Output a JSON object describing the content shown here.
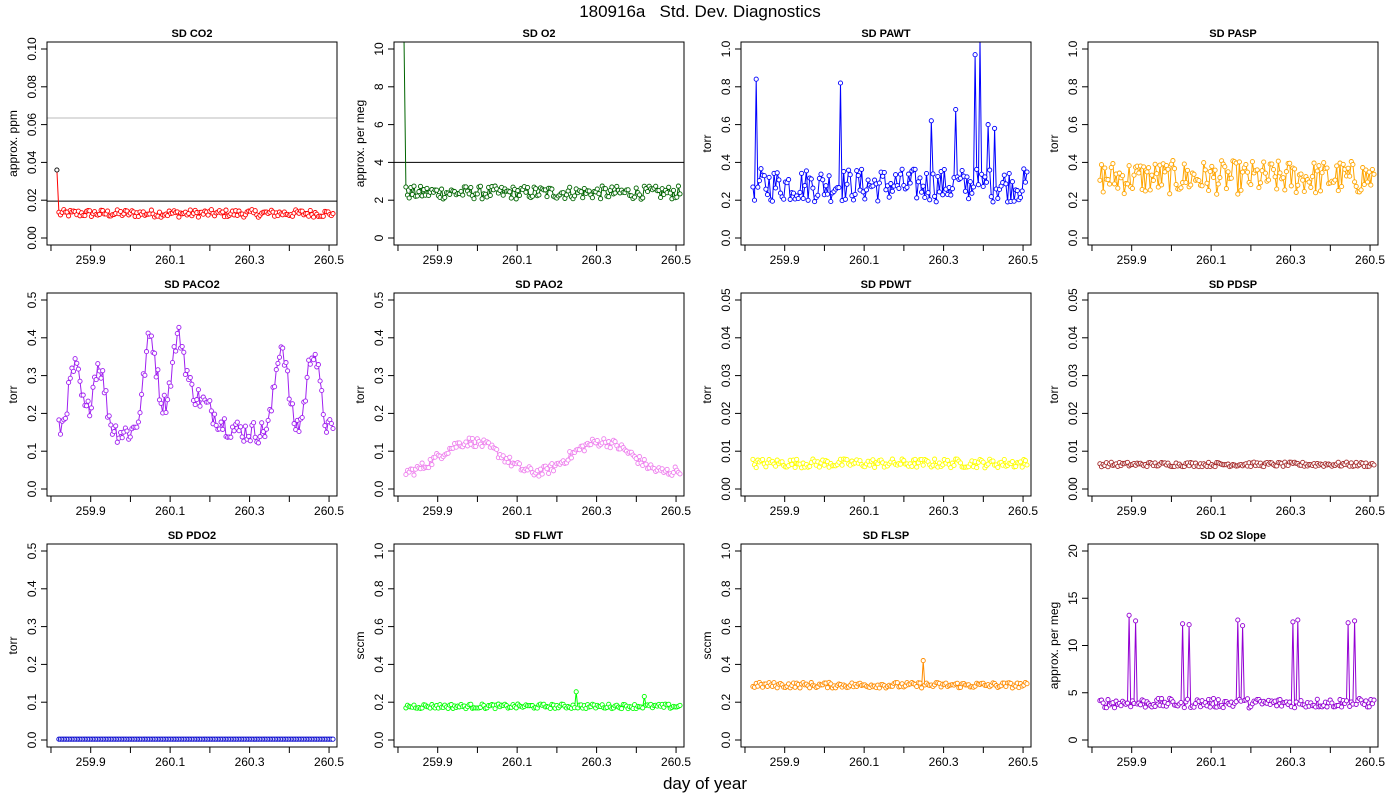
{
  "figure": {
    "title": "180916a   Std. Dev. Diagnostics",
    "xlabel": "day of year"
  },
  "chart_data": [
    {
      "type": "line",
      "title": "SD CO2",
      "ylabel": "approx. ppm",
      "ylim": [
        0,
        0.1
      ],
      "yticks": [
        "0.00",
        "0.02",
        "0.04",
        "0.06",
        "0.08",
        "0.10"
      ],
      "xticks": [
        "259.9",
        "260.1",
        "260.3",
        "260.5"
      ],
      "xlim": [
        259.79,
        260.52
      ],
      "color": "#ff0000",
      "base": 0.013,
      "amp": 0.002,
      "first": 0.036,
      "hlines": [
        {
          "y": 0.0195,
          "color": "#000000"
        },
        {
          "y": 0.0635,
          "color": "#bbbbbb"
        }
      ]
    },
    {
      "type": "line",
      "title": "SD O2",
      "ylabel": "approx. per meg",
      "ylim": [
        0,
        10
      ],
      "yticks": [
        "0",
        "2",
        "4",
        "6",
        "8",
        "10"
      ],
      "xticks": [
        "259.9",
        "260.1",
        "260.3",
        "260.5"
      ],
      "xlim": [
        259.79,
        260.52
      ],
      "color": "#006400",
      "base": 2.4,
      "amp": 0.35,
      "first": 11,
      "hlines": [
        {
          "y": 4,
          "color": "#000000"
        }
      ]
    },
    {
      "type": "line",
      "title": "SD PAWT",
      "ylabel": "torr",
      "ylim": [
        0,
        1
      ],
      "yticks": [
        "0.0",
        "0.2",
        "0.4",
        "0.6",
        "0.8",
        "1.0"
      ],
      "xticks": [
        "259.9",
        "260.1",
        "260.3",
        "260.5"
      ],
      "xlim": [
        259.79,
        260.52
      ],
      "color": "#0000ff",
      "base": 0.28,
      "amp": 0.09,
      "spikes": [
        {
          "x": 259.83,
          "y": 0.84
        },
        {
          "x": 260.04,
          "y": 0.82
        },
        {
          "x": 260.27,
          "y": 0.62
        },
        {
          "x": 260.33,
          "y": 0.68
        },
        {
          "x": 260.38,
          "y": 0.97
        },
        {
          "x": 260.39,
          "y": 1.05
        },
        {
          "x": 260.41,
          "y": 0.6
        },
        {
          "x": 260.43,
          "y": 0.58
        }
      ]
    },
    {
      "type": "line",
      "title": "SD PASP",
      "ylabel": "torr",
      "ylim": [
        0,
        1
      ],
      "yticks": [
        "0.0",
        "0.2",
        "0.4",
        "0.6",
        "0.8",
        "1.0"
      ],
      "xticks": [
        "259.9",
        "260.1",
        "260.3",
        "260.5"
      ],
      "xlim": [
        259.79,
        260.52
      ],
      "color": "#ffa500",
      "base": 0.32,
      "amp": 0.09
    },
    {
      "type": "line",
      "title": "SD PACO2",
      "ylabel": "torr",
      "ylim": [
        0,
        0.5
      ],
      "yticks": [
        "0.0",
        "0.1",
        "0.2",
        "0.3",
        "0.4",
        "0.5"
      ],
      "xticks": [
        "259.9",
        "260.1",
        "260.3",
        "260.5"
      ],
      "xlim": [
        259.79,
        260.52
      ],
      "color": "#a020f0",
      "shape": "paco2"
    },
    {
      "type": "line",
      "title": "SD PAO2",
      "ylabel": "torr",
      "ylim": [
        0,
        0.5
      ],
      "yticks": [
        "0.0",
        "0.1",
        "0.2",
        "0.3",
        "0.4",
        "0.5"
      ],
      "xticks": [
        "259.9",
        "260.1",
        "260.3",
        "260.5"
      ],
      "xlim": [
        259.79,
        260.52
      ],
      "color": "#ee82ee",
      "shape": "pao2"
    },
    {
      "type": "line",
      "title": "SD PDWT",
      "ylabel": "torr",
      "ylim": [
        0,
        0.05
      ],
      "yticks": [
        "0.00",
        "0.01",
        "0.02",
        "0.03",
        "0.04",
        "0.05"
      ],
      "xticks": [
        "259.9",
        "260.1",
        "260.3",
        "260.5"
      ],
      "xlim": [
        259.79,
        260.52
      ],
      "color": "#ffff00",
      "base": 0.0068,
      "amp": 0.0012
    },
    {
      "type": "line",
      "title": "SD PDSP",
      "ylabel": "torr",
      "ylim": [
        0,
        0.05
      ],
      "yticks": [
        "0.00",
        "0.01",
        "0.02",
        "0.03",
        "0.04",
        "0.05"
      ],
      "xticks": [
        "259.9",
        "260.1",
        "260.3",
        "260.5"
      ],
      "xlim": [
        259.79,
        260.52
      ],
      "color": "#a52a2a",
      "base": 0.0065,
      "amp": 0.0006
    },
    {
      "type": "line",
      "title": "SD PDO2",
      "ylabel": "torr",
      "ylim": [
        0,
        0.5
      ],
      "yticks": [
        "0.0",
        "0.1",
        "0.2",
        "0.3",
        "0.4",
        "0.5"
      ],
      "xticks": [
        "259.9",
        "260.1",
        "260.3",
        "260.5"
      ],
      "xlim": [
        259.79,
        260.52
      ],
      "color": "#0000cd",
      "base": 0.002,
      "amp": 0.0
    },
    {
      "type": "line",
      "title": "SD FLWT",
      "ylabel": "sccm",
      "ylim": [
        0,
        1
      ],
      "yticks": [
        "0.0",
        "0.2",
        "0.4",
        "0.6",
        "0.8",
        "1.0"
      ],
      "xticks": [
        "259.9",
        "260.1",
        "260.3",
        "260.5"
      ],
      "xlim": [
        259.79,
        260.52
      ],
      "color": "#00ff00",
      "base": 0.178,
      "amp": 0.012,
      "spikes": [
        {
          "x": 260.25,
          "y": 0.255
        },
        {
          "x": 260.42,
          "y": 0.23
        }
      ]
    },
    {
      "type": "line",
      "title": "SD FLSP",
      "ylabel": "sccm",
      "ylim": [
        0,
        1
      ],
      "yticks": [
        "0.0",
        "0.2",
        "0.4",
        "0.6",
        "0.8",
        "1.0"
      ],
      "xticks": [
        "259.9",
        "260.1",
        "260.3",
        "260.5"
      ],
      "xlim": [
        259.79,
        260.52
      ],
      "color": "#ff8c00",
      "base": 0.29,
      "amp": 0.015,
      "spikes": [
        {
          "x": 260.25,
          "y": 0.42
        }
      ]
    },
    {
      "type": "line",
      "title": "SD O2 Slope",
      "ylabel": "approx. per meg",
      "ylim": [
        0,
        20
      ],
      "yticks": [
        "0",
        "5",
        "10",
        "15",
        "20"
      ],
      "xticks": [
        "259.9",
        "260.1",
        "260.3",
        "260.5"
      ],
      "xlim": [
        259.79,
        260.52
      ],
      "color": "#9400d3",
      "base": 3.9,
      "amp": 0.5,
      "spikes": [
        {
          "x": 259.895,
          "y": 13.2
        },
        {
          "x": 259.91,
          "y": 12.6
        },
        {
          "x": 260.03,
          "y": 12.3
        },
        {
          "x": 260.045,
          "y": 12.2
        },
        {
          "x": 260.165,
          "y": 12.7
        },
        {
          "x": 260.18,
          "y": 12.1
        },
        {
          "x": 260.305,
          "y": 12.5
        },
        {
          "x": 260.32,
          "y": 12.7
        },
        {
          "x": 260.445,
          "y": 12.4
        },
        {
          "x": 260.46,
          "y": 12.6
        }
      ]
    }
  ]
}
